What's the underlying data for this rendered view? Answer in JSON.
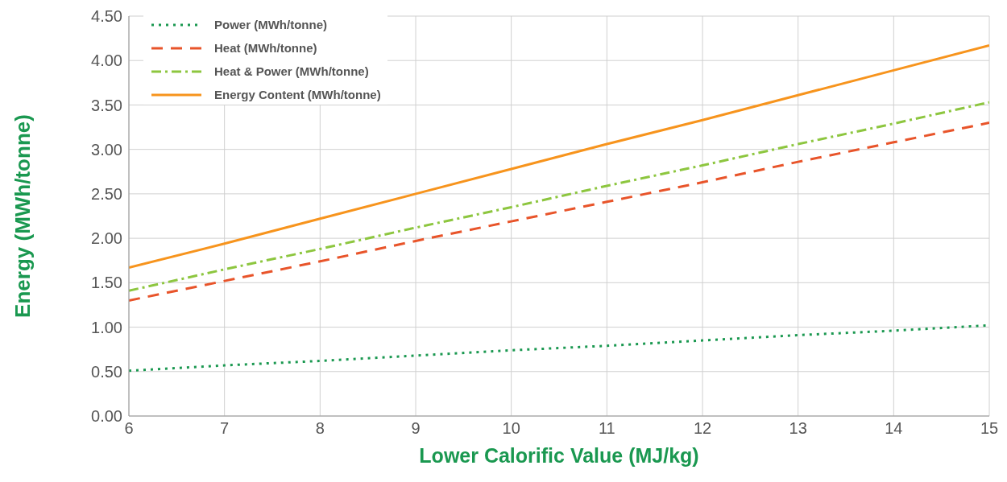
{
  "chart_data": {
    "type": "line",
    "xlabel": "Lower Calorific Value (MJ/kg)",
    "ylabel": "Energy (MWh/tonne)",
    "x": [
      6,
      7,
      8,
      9,
      10,
      11,
      12,
      13,
      14,
      15
    ],
    "series": [
      {
        "name": "Power (MWh/tonne)",
        "color": "#1a9850",
        "line_style": "dotted",
        "values": [
          0.51,
          0.57,
          0.62,
          0.68,
          0.74,
          0.79,
          0.85,
          0.91,
          0.96,
          1.02
        ]
      },
      {
        "name": "Heat (MWh/tonne)",
        "color": "#e8542a",
        "line_style": "dashed",
        "values": [
          1.3,
          1.52,
          1.74,
          1.97,
          2.19,
          2.41,
          2.63,
          2.86,
          3.08,
          3.3
        ]
      },
      {
        "name": "Heat & Power (MWh/tonne)",
        "color": "#8dc63f",
        "line_style": "dashdot",
        "values": [
          1.41,
          1.65,
          1.88,
          2.12,
          2.35,
          2.59,
          2.82,
          3.06,
          3.29,
          3.53
        ]
      },
      {
        "name": "Energy Content (MWh/tonne)",
        "color": "#f7941d",
        "line_style": "solid",
        "values": [
          1.67,
          1.94,
          2.22,
          2.5,
          2.78,
          3.06,
          3.33,
          3.61,
          3.89,
          4.17
        ]
      }
    ],
    "xlim": [
      6,
      15
    ],
    "xticks": [
      6,
      7,
      8,
      9,
      10,
      11,
      12,
      13,
      14,
      15
    ],
    "ylim": [
      0,
      4.5
    ],
    "yticks": [
      {
        "value": 0,
        "label": "0.00"
      },
      {
        "value": 0.5,
        "label": "0.50"
      },
      {
        "value": 1,
        "label": "1.00"
      },
      {
        "value": 1.5,
        "label": "1.50"
      },
      {
        "value": 2,
        "label": "2.00"
      },
      {
        "value": 2.5,
        "label": "2.50"
      },
      {
        "value": 3,
        "label": "3.00"
      },
      {
        "value": 3.5,
        "label": "3.50"
      },
      {
        "value": 4,
        "label": "4.00"
      },
      {
        "value": 4.5,
        "label": "4.50"
      }
    ],
    "grid": true,
    "legend": "top left",
    "marker": "none"
  }
}
